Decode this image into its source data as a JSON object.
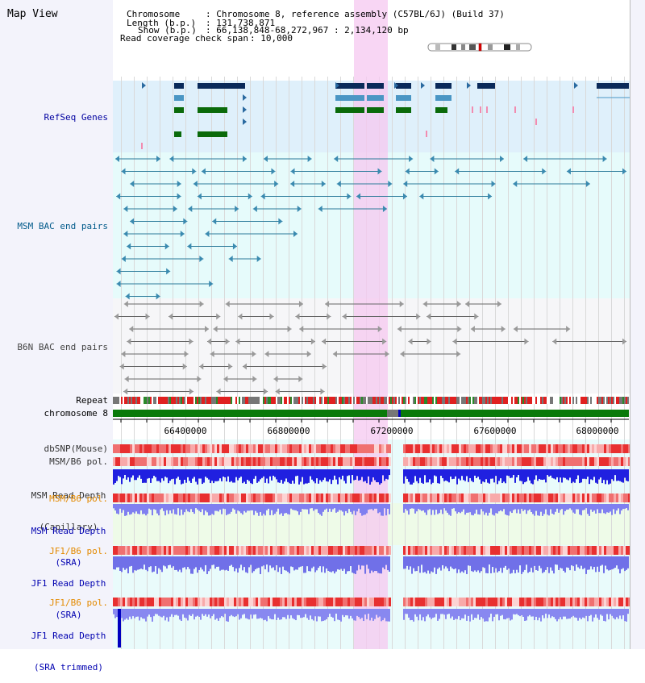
{
  "title": "Map View",
  "header": {
    "chromosome_key": "Chromosome",
    "chromosome_value": ": Chromosome 8, reference assembly (C57BL/6J) (Build 37)",
    "length_key": "Length (b.p.)",
    "length_value": ": 131,738,871",
    "show_key": "Show (b.p.)",
    "show_value": ": 66,138,848-68,272,967 : 2,134,120 bp",
    "coverage_key": "Read coverage check span",
    "coverage_value": ": 10,000"
  },
  "tracks": {
    "refseq": "RefSeq Genes",
    "msm_bac": "MSM BAC end pairs",
    "b6n_bac": "B6N BAC end pairs",
    "repeat": "Repeat",
    "chromosome": "chromosome 8",
    "dbsnp": "dbSNP(Mouse)",
    "msm_b6_pol_1": "MSM/B6 pol.",
    "msm_read_depth_cap_1": "MSM Read Depth",
    "msm_read_depth_cap_2": "(Capillary)",
    "msm_b6_pol_2": "MSM/B6 pol.",
    "msm_read_depth_sra_1": "MSM Read Depth",
    "msm_read_depth_sra_2": "(SRA)",
    "jf1_b6_pol_1": "JF1/B6 pol.",
    "jf1_read_depth_sra_1": "JF1 Read Depth",
    "jf1_read_depth_sra_2": "(SRA)",
    "jf1_b6_pol_2": "JF1/B6 pol.",
    "jf1_read_depth_trim_1": "JF1 Read Depth",
    "jf1_read_depth_trim_2": "(SRA trimmed)"
  },
  "axis": {
    "ticks": [
      "66400000",
      "66800000",
      "67200000",
      "67600000",
      "68000000"
    ]
  },
  "colors": {
    "refseq_bg": "#dff0fb",
    "msm_bg": "#e6fbfb",
    "b6n_bg": "#f5f5f7",
    "highlight": "#f8d7f4",
    "msm_label": "#003b7a",
    "refseq_label": "#0000a0",
    "b6n_label": "#333333",
    "orange_label": "#e38a00",
    "blue_label": "#0000b0"
  }
}
